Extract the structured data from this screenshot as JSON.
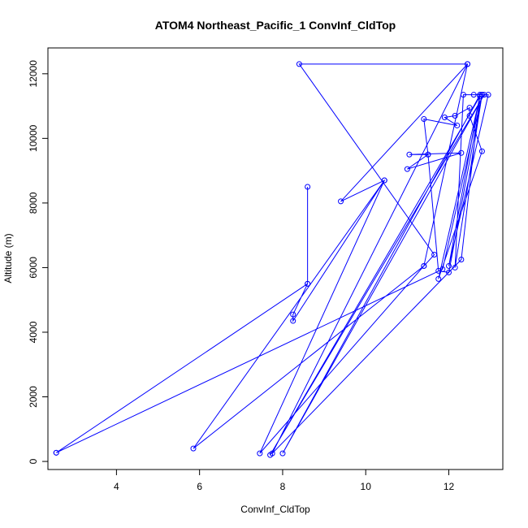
{
  "chart_data": {
    "type": "line",
    "title": "ATOM4 Northeast_Pacific_1 ConvInf_CldTop",
    "xlabel": "ConvInf_CldTop",
    "ylabel": "Altitude (m)",
    "xlim": [
      2.35,
      13.3
    ],
    "ylim": [
      -250,
      12800
    ],
    "x_ticks": [
      4,
      6,
      8,
      10,
      12
    ],
    "y_ticks": [
      0,
      2000,
      4000,
      6000,
      8000,
      10000,
      12000
    ],
    "grid": false,
    "series_color": "#0000ff",
    "series": [
      {
        "points": [
          [
            2.55,
            270
          ],
          [
            11.85,
            5950
          ],
          [
            12.8,
            11350
          ],
          [
            12.6,
            11350
          ],
          [
            12.95,
            11350
          ],
          [
            12.0,
            6050
          ],
          [
            12.75,
            11350
          ],
          [
            8.0,
            250
          ],
          [
            12.85,
            11350
          ],
          [
            7.7,
            200
          ],
          [
            12.75,
            11300
          ],
          [
            11.75,
            5650
          ],
          [
            12.8,
            9600
          ],
          [
            12.5,
            10700
          ],
          [
            12.5,
            10950
          ],
          [
            12.15,
            10700
          ],
          [
            11.9,
            10650
          ],
          [
            12.2,
            10400
          ],
          [
            11.4,
            10600
          ],
          [
            11.5,
            9500
          ],
          [
            11.05,
            9500
          ],
          [
            12.3,
            9550
          ],
          [
            11.0,
            9050
          ],
          [
            11.5,
            9500
          ],
          [
            11.75,
            5900
          ],
          [
            12.0,
            5850
          ],
          [
            12.8,
            11350
          ],
          [
            12.15,
            6000
          ],
          [
            12.35,
            11350
          ],
          [
            12.75,
            11350
          ],
          [
            12.3,
            6250
          ],
          [
            7.75,
            250
          ],
          [
            12.45,
            12300
          ],
          [
            9.4,
            8050
          ],
          [
            10.45,
            8700
          ],
          [
            7.45,
            250
          ],
          [
            11.4,
            6050
          ],
          [
            12.45,
            12300
          ],
          [
            8.4,
            12300
          ],
          [
            11.65,
            6400
          ],
          [
            11.4,
            6050
          ],
          [
            5.85,
            400
          ],
          [
            10.45,
            8700
          ],
          [
            8.25,
            4350
          ],
          [
            8.25,
            4550
          ],
          [
            8.6,
            5500
          ],
          [
            8.6,
            8500
          ],
          [
            8.6,
            5500
          ],
          [
            2.55,
            270
          ]
        ]
      }
    ]
  }
}
